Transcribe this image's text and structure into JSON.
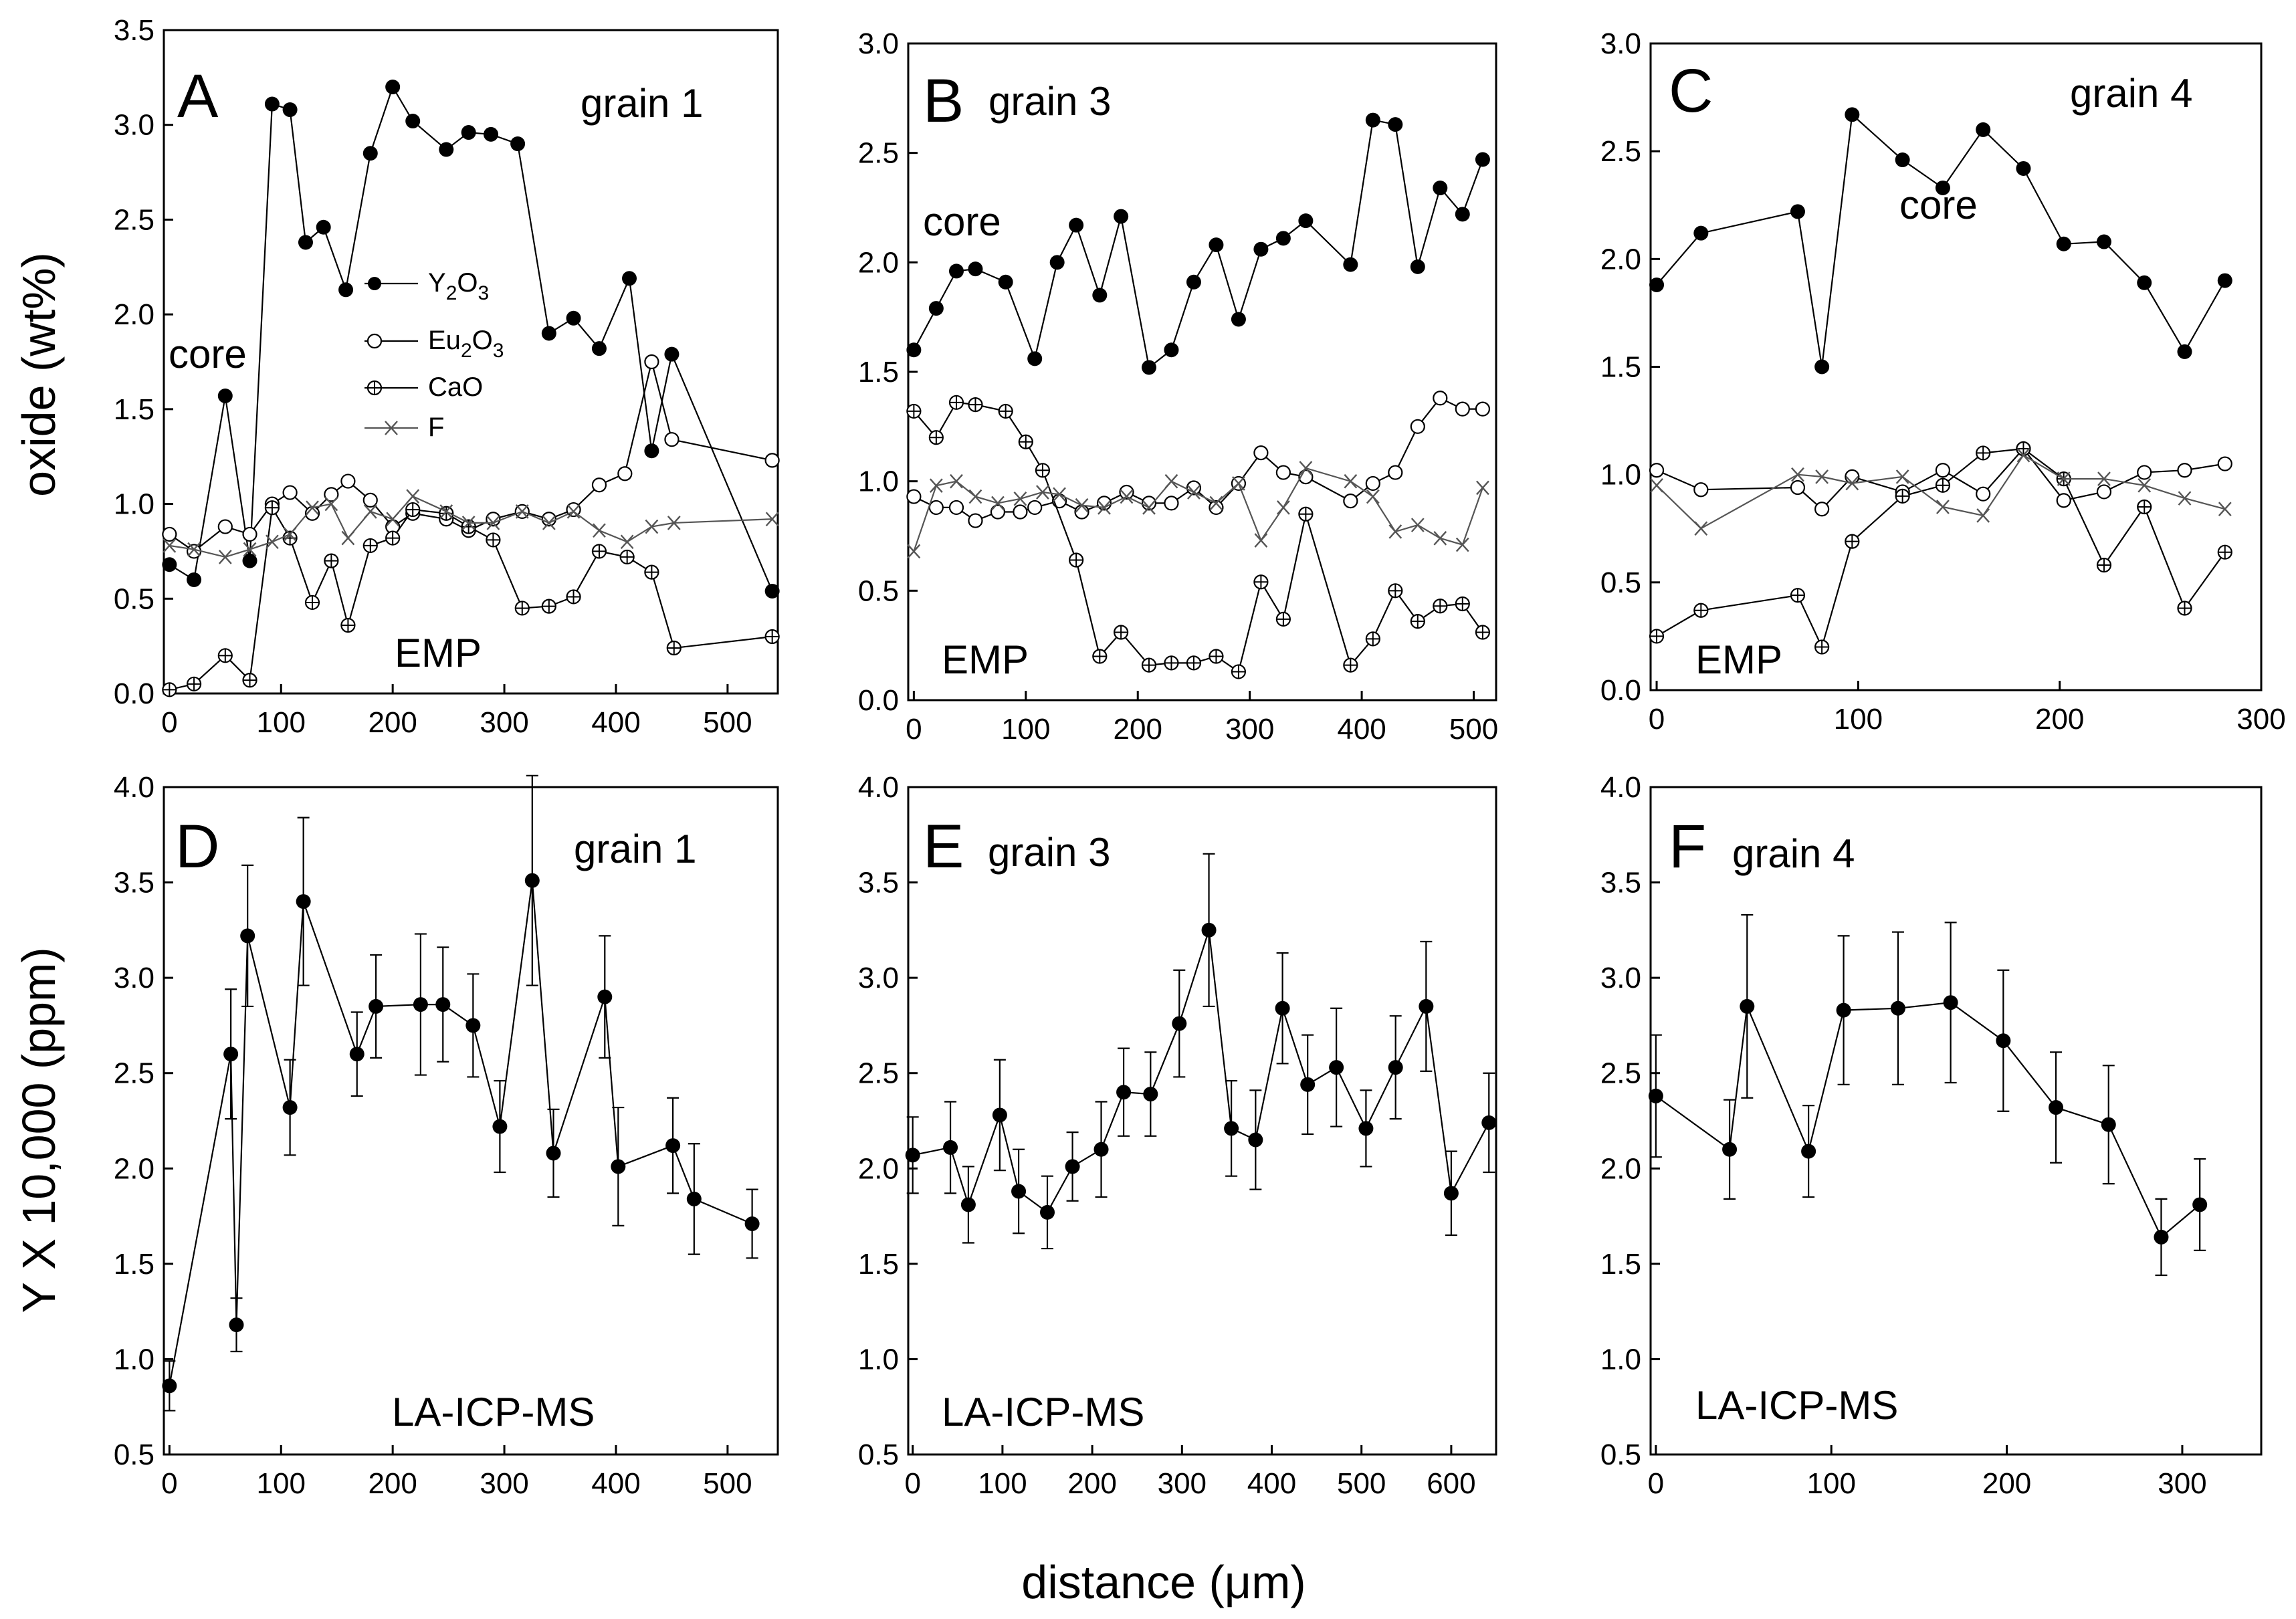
{
  "figure": {
    "xlabel": "distance (μm)",
    "ylabel_top": "oxide (wt%)",
    "ylabel_bottom": "Y X 10,000 (ppm)"
  },
  "legend": {
    "y2o3": "Y2O3",
    "eu2o3": "Eu2O3",
    "cao": "CaO",
    "f": "F"
  },
  "chart_data": [
    {
      "id": "A",
      "type": "line",
      "title": "grain 1",
      "method": "EMP",
      "annotations": [
        "core"
      ],
      "xlim": [
        -5,
        545
      ],
      "ylim": [
        0,
        3.5
      ],
      "xticks": [
        0,
        100,
        200,
        300,
        400,
        500
      ],
      "yticks": [
        "0.0",
        "0.5",
        "1.0",
        "1.5",
        "2.0",
        "2.5",
        "3.0",
        "3.5"
      ],
      "series": [
        {
          "name": "Y2O3",
          "marker": "filled",
          "x": [
            0,
            22,
            50,
            72,
            92,
            108,
            122,
            138,
            158,
            180,
            200,
            218,
            248,
            268,
            288,
            312,
            340,
            362,
            385,
            412,
            432,
            450,
            540
          ],
          "y": [
            0.68,
            0.6,
            1.57,
            0.7,
            3.11,
            3.08,
            2.38,
            2.46,
            2.13,
            2.85,
            3.2,
            3.02,
            2.87,
            2.96,
            2.95,
            2.9,
            1.9,
            1.98,
            1.82,
            2.19,
            1.28,
            1.79,
            0.54
          ]
        },
        {
          "name": "Eu2O3",
          "marker": "open",
          "x": [
            0,
            22,
            50,
            72,
            92,
            108,
            128,
            145,
            160,
            180,
            200,
            218,
            248,
            268,
            290,
            316,
            340,
            362,
            385,
            408,
            432,
            450,
            540
          ],
          "y": [
            0.84,
            0.75,
            0.88,
            0.84,
            1.0,
            1.06,
            0.95,
            1.05,
            1.12,
            1.02,
            0.88,
            0.95,
            0.92,
            0.86,
            0.92,
            0.96,
            0.92,
            0.97,
            1.1,
            1.16,
            1.75,
            1.34,
            1.23
          ]
        },
        {
          "name": "CaO",
          "marker": "cross",
          "x": [
            0,
            22,
            50,
            72,
            92,
            108,
            128,
            145,
            160,
            180,
            200,
            218,
            248,
            268,
            290,
            316,
            340,
            362,
            385,
            410,
            432,
            452,
            540
          ],
          "y": [
            0.02,
            0.05,
            0.2,
            0.07,
            0.98,
            0.82,
            0.48,
            0.7,
            0.36,
            0.78,
            0.82,
            0.97,
            0.95,
            0.88,
            0.81,
            0.45,
            0.46,
            0.51,
            0.75,
            0.72,
            0.64,
            0.24,
            0.3
          ]
        },
        {
          "name": "F",
          "marker": "x",
          "x": [
            0,
            22,
            50,
            72,
            92,
            108,
            128,
            145,
            160,
            180,
            200,
            218,
            248,
            268,
            290,
            316,
            340,
            362,
            385,
            410,
            432,
            452,
            540
          ],
          "y": [
            0.78,
            0.76,
            0.72,
            0.76,
            0.8,
            0.84,
            0.98,
            1.0,
            0.82,
            0.96,
            0.92,
            1.04,
            0.96,
            0.9,
            0.9,
            0.96,
            0.9,
            0.96,
            0.86,
            0.8,
            0.88,
            0.9,
            0.92
          ]
        }
      ]
    },
    {
      "id": "B",
      "type": "line",
      "title": "grain 3",
      "method": "EMP",
      "annotations": [
        "core"
      ],
      "xlim": [
        -5,
        520
      ],
      "ylim": [
        0,
        3.0
      ],
      "xticks": [
        0,
        100,
        200,
        300,
        400,
        500
      ],
      "yticks": [
        "0.0",
        "0.5",
        "1.0",
        "1.5",
        "2.0",
        "2.5",
        "3.0"
      ],
      "series": [
        {
          "name": "Y2O3",
          "marker": "filled",
          "x": [
            0,
            20,
            38,
            55,
            82,
            108,
            128,
            145,
            166,
            185,
            210,
            230,
            250,
            270,
            290,
            310,
            330,
            350,
            390,
            410,
            430,
            450,
            470,
            490,
            508
          ],
          "y": [
            1.6,
            1.79,
            1.96,
            1.97,
            1.91,
            1.56,
            2.0,
            2.17,
            1.85,
            2.21,
            1.52,
            1.6,
            1.91,
            2.08,
            1.74,
            2.06,
            2.11,
            2.19,
            1.99,
            2.65,
            2.63,
            1.98,
            2.34,
            2.22,
            2.47
          ]
        },
        {
          "name": "Eu2O3",
          "marker": "open",
          "x": [
            0,
            20,
            38,
            55,
            75,
            95,
            108,
            130,
            150,
            170,
            190,
            210,
            230,
            250,
            270,
            290,
            310,
            330,
            350,
            390,
            410,
            430,
            450,
            470,
            490,
            508
          ],
          "y": [
            0.93,
            0.88,
            0.88,
            0.82,
            0.86,
            0.86,
            0.88,
            0.91,
            0.86,
            0.9,
            0.95,
            0.9,
            0.9,
            0.97,
            0.88,
            0.99,
            1.13,
            1.04,
            1.02,
            0.91,
            0.99,
            1.04,
            1.25,
            1.38,
            1.33,
            1.33
          ]
        },
        {
          "name": "CaO",
          "marker": "cross",
          "x": [
            0,
            20,
            38,
            55,
            82,
            100,
            115,
            145,
            166,
            185,
            210,
            230,
            250,
            270,
            290,
            310,
            330,
            350,
            390,
            410,
            430,
            450,
            470,
            490,
            508
          ],
          "y": [
            1.32,
            1.2,
            1.36,
            1.35,
            1.32,
            1.18,
            1.05,
            0.64,
            0.2,
            0.31,
            0.16,
            0.17,
            0.17,
            0.2,
            0.13,
            0.54,
            0.37,
            0.85,
            0.16,
            0.28,
            0.5,
            0.36,
            0.43,
            0.44,
            0.31
          ]
        },
        {
          "name": "F",
          "marker": "x",
          "x": [
            0,
            20,
            38,
            55,
            75,
            95,
            115,
            130,
            150,
            170,
            190,
            210,
            230,
            250,
            270,
            290,
            310,
            330,
            350,
            390,
            410,
            430,
            450,
            470,
            490,
            508
          ],
          "y": [
            0.68,
            0.98,
            1.0,
            0.93,
            0.9,
            0.92,
            0.95,
            0.94,
            0.89,
            0.88,
            0.93,
            0.88,
            1.0,
            0.95,
            0.9,
            0.99,
            0.73,
            0.88,
            1.06,
            1.0,
            0.93,
            0.77,
            0.8,
            0.74,
            0.71,
            0.97
          ]
        }
      ]
    },
    {
      "id": "C",
      "type": "line",
      "title": "grain 4",
      "method": "EMP",
      "annotations": [
        "core"
      ],
      "xlim": [
        -3,
        300
      ],
      "ylim": [
        0,
        3.0
      ],
      "xticks": [
        0,
        100,
        200,
        300
      ],
      "yticks": [
        "0.0",
        "0.5",
        "1.0",
        "1.5",
        "2.0",
        "2.5",
        "3.0"
      ],
      "series": [
        {
          "name": "Y2O3",
          "marker": "filled",
          "x": [
            0,
            22,
            70,
            82,
            97,
            122,
            142,
            162,
            182,
            202,
            222,
            242,
            262,
            282
          ],
          "y": [
            1.88,
            2.12,
            2.22,
            1.5,
            2.67,
            2.46,
            2.33,
            2.6,
            2.42,
            2.07,
            2.08,
            1.89,
            1.57,
            1.9
          ]
        },
        {
          "name": "Eu2O3",
          "marker": "open",
          "x": [
            0,
            22,
            70,
            82,
            97,
            122,
            142,
            162,
            182,
            202,
            222,
            242,
            262,
            282
          ],
          "y": [
            1.02,
            0.93,
            0.94,
            0.84,
            0.99,
            0.92,
            1.02,
            0.91,
            1.12,
            0.88,
            0.92,
            1.01,
            1.02,
            1.05
          ]
        },
        {
          "name": "CaO",
          "marker": "cross",
          "x": [
            0,
            22,
            70,
            82,
            97,
            122,
            142,
            162,
            182,
            202,
            222,
            242,
            262,
            282
          ],
          "y": [
            0.25,
            0.37,
            0.44,
            0.2,
            0.69,
            0.9,
            0.95,
            1.1,
            1.12,
            0.98,
            0.58,
            0.85,
            0.38,
            0.64
          ]
        },
        {
          "name": "F",
          "marker": "x",
          "x": [
            0,
            22,
            70,
            82,
            97,
            122,
            142,
            162,
            182,
            202,
            222,
            242,
            262,
            282
          ],
          "y": [
            0.95,
            0.75,
            1.0,
            0.99,
            0.96,
            0.99,
            0.85,
            0.81,
            1.09,
            0.98,
            0.98,
            0.95,
            0.89,
            0.84
          ]
        }
      ]
    },
    {
      "id": "D",
      "type": "scatter",
      "title": "grain 1",
      "method": "LA-ICP-MS",
      "xlim": [
        -5,
        545
      ],
      "ylim": [
        0.5,
        4.0
      ],
      "xticks": [
        0,
        100,
        200,
        300,
        400,
        500
      ],
      "yticks": [
        "0.5",
        "1.0",
        "1.5",
        "2.0",
        "2.5",
        "3.0",
        "3.5",
        "4.0"
      ],
      "series": [
        {
          "name": "Y",
          "x": [
            0,
            55,
            60,
            70,
            108,
            120,
            168,
            185,
            225,
            245,
            272,
            296,
            325,
            344,
            390,
            402,
            451,
            470,
            522
          ],
          "y": [
            0.86,
            2.6,
            1.18,
            3.22,
            2.32,
            3.4,
            2.6,
            2.85,
            2.86,
            2.86,
            2.75,
            2.22,
            3.51,
            2.08,
            2.9,
            2.01,
            2.12,
            1.84,
            1.71
          ],
          "err": [
            0.13,
            0.34,
            0.14,
            0.37,
            0.25,
            0.44,
            0.22,
            0.27,
            0.37,
            0.3,
            0.27,
            0.24,
            0.55,
            0.23,
            0.32,
            0.31,
            0.25,
            0.29,
            0.18
          ]
        }
      ]
    },
    {
      "id": "E",
      "type": "scatter",
      "title": "grain 3",
      "method": "LA-ICP-MS",
      "xlim": [
        -5,
        650
      ],
      "ylim": [
        0.5,
        4.0
      ],
      "xticks": [
        0,
        100,
        200,
        300,
        400,
        500,
        600
      ],
      "yticks": [
        "0.5",
        "1.0",
        "1.5",
        "2.0",
        "2.5",
        "3.0",
        "3.5",
        "4.0"
      ],
      "series": [
        {
          "name": "Y",
          "x": [
            0,
            42,
            62,
            97,
            118,
            150,
            178,
            210,
            235,
            265,
            297,
            330,
            355,
            382,
            412,
            440,
            472,
            505,
            538,
            572,
            600,
            642
          ],
          "y": [
            2.07,
            2.11,
            1.81,
            2.28,
            1.88,
            1.77,
            2.01,
            2.1,
            2.4,
            2.39,
            2.76,
            3.25,
            2.21,
            2.15,
            2.84,
            2.44,
            2.53,
            2.21,
            2.53,
            2.85,
            1.87,
            2.24
          ],
          "err": [
            0.2,
            0.24,
            0.2,
            0.29,
            0.22,
            0.19,
            0.18,
            0.25,
            0.23,
            0.22,
            0.28,
            0.4,
            0.25,
            0.26,
            0.29,
            0.26,
            0.31,
            0.2,
            0.27,
            0.34,
            0.22,
            0.26
          ]
        }
      ]
    },
    {
      "id": "F",
      "type": "scatter",
      "title": "grain 4",
      "method": "LA-ICP-MS",
      "xlim": [
        -3,
        345
      ],
      "ylim": [
        0.5,
        4.0
      ],
      "xticks": [
        0,
        100,
        200,
        300
      ],
      "yticks": [
        "0.5",
        "1.0",
        "1.5",
        "2.0",
        "2.5",
        "3.0",
        "3.5",
        "4.0"
      ],
      "series": [
        {
          "name": "Y",
          "x": [
            0,
            42,
            52,
            87,
            107,
            138,
            168,
            198,
            228,
            258,
            288,
            310
          ],
          "y": [
            2.38,
            2.1,
            2.85,
            2.09,
            2.83,
            2.84,
            2.87,
            2.67,
            2.32,
            2.23,
            1.64,
            1.81
          ],
          "err": [
            0.32,
            0.26,
            0.48,
            0.24,
            0.39,
            0.4,
            0.42,
            0.37,
            0.29,
            0.31,
            0.2,
            0.24
          ]
        }
      ]
    }
  ]
}
